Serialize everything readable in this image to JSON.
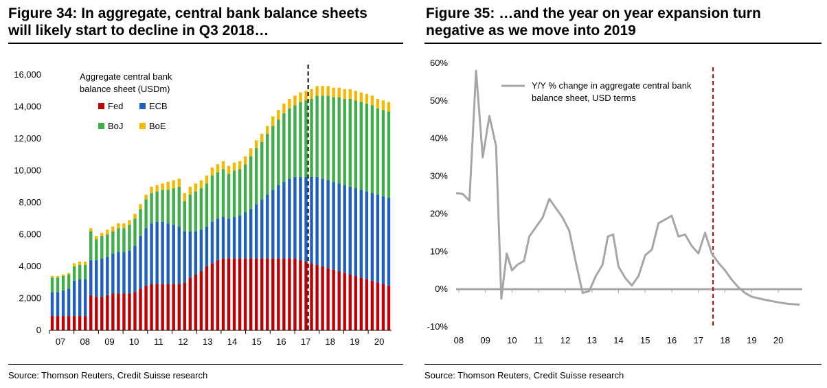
{
  "chart_data": [
    {
      "type": "bar",
      "stacked": true,
      "title": "Figure 34: In aggregate, central bank balance sheets will likely start to decline in Q3 2018…",
      "source": "Source: Thomson Reuters, Credit Suisse research",
      "legend_title": "Aggregate central bank balance sheet (USDm)",
      "legend_placement": "top-left",
      "ylim": [
        0,
        16000
      ],
      "yticks": [
        "0",
        "2,000",
        "4,000",
        "6,000",
        "8,000",
        "10,000",
        "12,000",
        "14,000",
        "16,000"
      ],
      "xtick_labels": [
        "07",
        "08",
        "09",
        "10",
        "11",
        "12",
        "13",
        "14",
        "15",
        "16",
        "17",
        "18",
        "19",
        "20"
      ],
      "x_start": 2007.0,
      "x_end": 2020.95,
      "period": "quarterly",
      "vertical_marker": 2017.55,
      "series": [
        {
          "name": "Fed",
          "color": "#c00000",
          "values": [
            900,
            900,
            900,
            900,
            900,
            900,
            900,
            2200,
            2100,
            2100,
            2200,
            2300,
            2300,
            2300,
            2300,
            2400,
            2600,
            2800,
            2900,
            2900,
            2900,
            2900,
            2900,
            2900,
            3000,
            3300,
            3500,
            3700,
            4000,
            4200,
            4400,
            4500,
            4500,
            4500,
            4500,
            4500,
            4500,
            4500,
            4500,
            4500,
            4500,
            4500,
            4500,
            4500,
            4500,
            4400,
            4300,
            4200,
            4100,
            4000,
            3900,
            3800,
            3700,
            3600,
            3500,
            3400,
            3300,
            3200,
            3100,
            3000,
            2900,
            2800
          ]
        },
        {
          "name": "ECB",
          "color": "#1f5fbf",
          "values": [
            1500,
            1500,
            1600,
            1700,
            2200,
            2300,
            2300,
            2200,
            2300,
            2400,
            2400,
            2500,
            2600,
            2600,
            2700,
            2900,
            3300,
            3600,
            3800,
            3900,
            3900,
            3800,
            3700,
            3600,
            3200,
            2900,
            2700,
            2600,
            2500,
            2600,
            2600,
            2600,
            2500,
            2600,
            2700,
            2900,
            3100,
            3400,
            3700,
            4000,
            4300,
            4600,
            4800,
            5000,
            5100,
            5200,
            5300,
            5400,
            5500,
            5500,
            5500,
            5500,
            5500,
            5500,
            5500,
            5500,
            5500,
            5500,
            5500,
            5500,
            5500,
            5500
          ]
        },
        {
          "name": "BoJ",
          "color": "#3fae49",
          "values": [
            900,
            900,
            900,
            900,
            900,
            900,
            900,
            1800,
            1300,
            1400,
            1400,
            1400,
            1500,
            1500,
            1600,
            1700,
            1700,
            1800,
            1900,
            1900,
            2000,
            2100,
            2300,
            2500,
            1900,
            2300,
            2500,
            2600,
            2700,
            2900,
            2900,
            3000,
            2800,
            2900,
            2900,
            3000,
            3300,
            3500,
            3600,
            3800,
            4000,
            4100,
            4300,
            4400,
            4500,
            4700,
            4800,
            4900,
            5100,
            5200,
            5300,
            5300,
            5400,
            5400,
            5500,
            5500,
            5500,
            5500,
            5500,
            5400,
            5400,
            5400
          ]
        },
        {
          "name": "BoE",
          "color": "#f5b800",
          "values": [
            100,
            100,
            100,
            100,
            200,
            200,
            200,
            200,
            200,
            200,
            300,
            300,
            300,
            300,
            300,
            300,
            300,
            300,
            400,
            400,
            400,
            500,
            500,
            500,
            500,
            500,
            500,
            500,
            500,
            500,
            500,
            500,
            500,
            500,
            500,
            500,
            500,
            500,
            500,
            500,
            600,
            600,
            600,
            600,
            600,
            600,
            600,
            600,
            600,
            600,
            600,
            600,
            600,
            600,
            600,
            600,
            600,
            600,
            600,
            600,
            600,
            600
          ]
        }
      ]
    },
    {
      "type": "line",
      "title": "Figure 35: …and the year on year expansion turn negative as we move into 2019",
      "source": "Source: Thomson Reuters, Credit Suisse research",
      "legend_placement": "top-right",
      "ylim": [
        -10,
        60
      ],
      "yticks": [
        "-10%",
        "0%",
        "10%",
        "20%",
        "30%",
        "40%",
        "50%",
        "60%"
      ],
      "xtick_labels": [
        "08",
        "09",
        "10",
        "11",
        "12",
        "13",
        "14",
        "15",
        "16",
        "17",
        "18",
        "19",
        "20"
      ],
      "x_start": 2007.9,
      "x_end": 2020.9,
      "vertical_marker": 2017.55,
      "series": [
        {
          "name": "Y/Y % change in aggregate central bank balance sheet, USD terms",
          "color": "#a6a6a6",
          "points": [
            [
              2007.9,
              25.5
            ],
            [
              2008.15,
              25.3
            ],
            [
              2008.4,
              23.5
            ],
            [
              2008.65,
              58
            ],
            [
              2008.9,
              35
            ],
            [
              2009.15,
              46
            ],
            [
              2009.4,
              38
            ],
            [
              2009.6,
              -2.5
            ],
            [
              2009.8,
              9.5
            ],
            [
              2010.0,
              5
            ],
            [
              2010.2,
              6.5
            ],
            [
              2010.45,
              7.5
            ],
            [
              2010.65,
              14
            ],
            [
              2010.9,
              16.5
            ],
            [
              2011.15,
              19
            ],
            [
              2011.4,
              24
            ],
            [
              2011.65,
              21.5
            ],
            [
              2011.9,
              19
            ],
            [
              2012.15,
              15.5
            ],
            [
              2012.4,
              7
            ],
            [
              2012.65,
              -1
            ],
            [
              2012.9,
              -0.5
            ],
            [
              2013.15,
              3.5
            ],
            [
              2013.4,
              6.5
            ],
            [
              2013.6,
              14
            ],
            [
              2013.8,
              14.5
            ],
            [
              2014.0,
              6
            ],
            [
              2014.25,
              3
            ],
            [
              2014.5,
              1
            ],
            [
              2014.75,
              3.5
            ],
            [
              2015.0,
              9
            ],
            [
              2015.25,
              10.5
            ],
            [
              2015.5,
              17.5
            ],
            [
              2015.75,
              18.5
            ],
            [
              2016.0,
              19.5
            ],
            [
              2016.25,
              14
            ],
            [
              2016.5,
              14.5
            ],
            [
              2016.75,
              11.5
            ],
            [
              2017.0,
              9.5
            ],
            [
              2017.25,
              15
            ],
            [
              2017.5,
              9.5
            ],
            [
              2017.75,
              7
            ],
            [
              2018.0,
              5
            ],
            [
              2018.25,
              2.5
            ],
            [
              2018.5,
              0.5
            ],
            [
              2018.75,
              -1
            ],
            [
              2019.0,
              -2
            ],
            [
              2019.5,
              -2.8
            ],
            [
              2020.0,
              -3.5
            ],
            [
              2020.4,
              -3.9
            ],
            [
              2020.8,
              -4.1
            ]
          ]
        }
      ]
    }
  ]
}
